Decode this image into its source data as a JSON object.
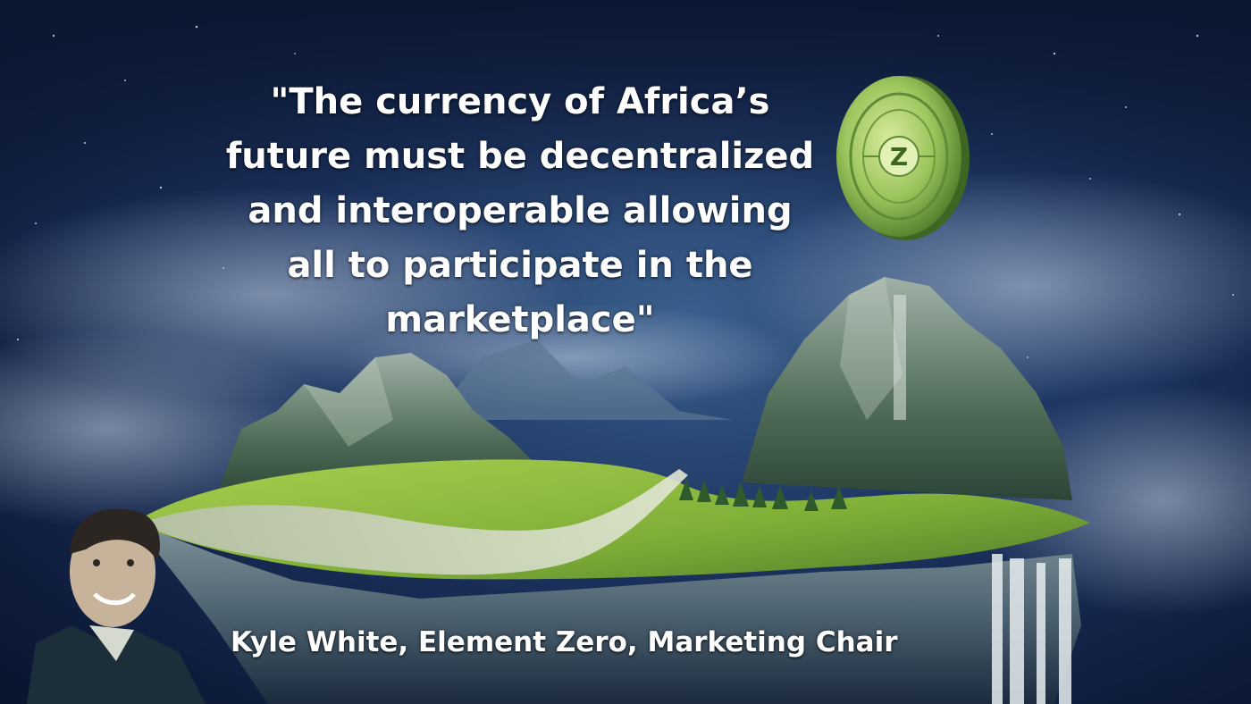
{
  "quote": {
    "lines": [
      "\"The currency of Africa’s",
      "future must be decentralized",
      "and interoperable allowing",
      "all to participate in the",
      "marketplace\""
    ]
  },
  "credit": {
    "text": "Kyle White, Element Zero, Marketing Chair"
  },
  "coin": {
    "icon": "element-zero-coin-icon",
    "symbol": "Z"
  },
  "colors": {
    "sky": "#0d1a33",
    "grass": "#8fbf3a",
    "coin": "#9bc36a",
    "text": "#ffffff"
  }
}
